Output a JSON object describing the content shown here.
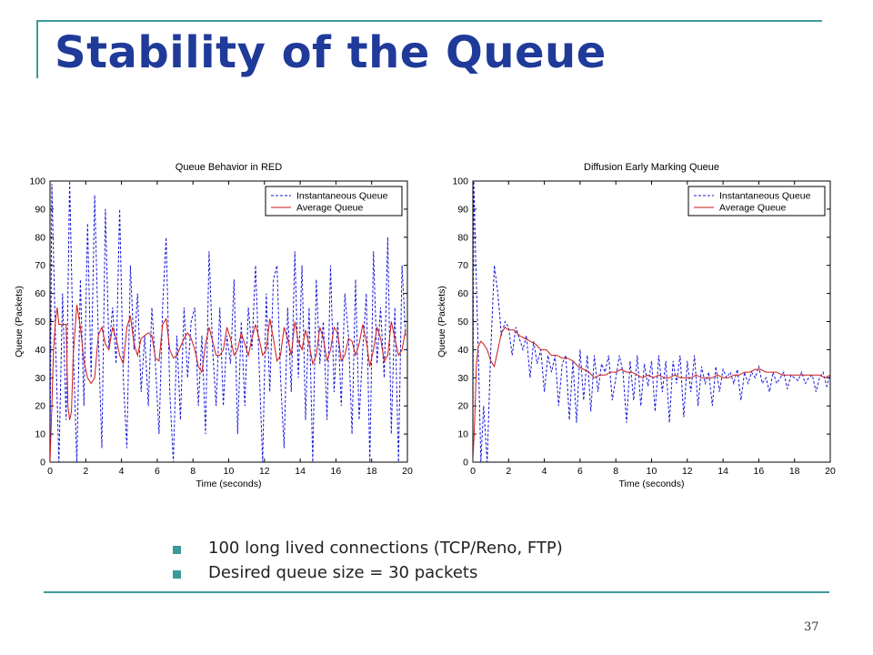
{
  "slide": {
    "title": "Stability of the Queue",
    "bullets": [
      "100 long lived connections (TCP/Reno, FTP)",
      "Desired queue size = 30 packets"
    ],
    "page_number": "37",
    "colors": {
      "title": "#1f3a99",
      "accent_lines": "#3f9a9a",
      "bullet": "#3a9a9a"
    }
  },
  "chart_data": [
    {
      "type": "line",
      "title": "Queue Behavior in RED",
      "xlabel": "Time (seconds)",
      "ylabel": "Queue (Packets)",
      "xlim": [
        0,
        20
      ],
      "ylim": [
        0,
        100
      ],
      "xticks": [
        "0",
        "2",
        "4",
        "6",
        "8",
        "10",
        "12",
        "14",
        "16",
        "18",
        "20"
      ],
      "yticks": [
        "0",
        "10",
        "20",
        "30",
        "40",
        "50",
        "60",
        "70",
        "80",
        "90",
        "100"
      ],
      "legend_position": "top-right",
      "series": [
        {
          "name": "Instantaneous Queue",
          "style": "dashed",
          "color": "#1a1ad6",
          "x": [
            0,
            0.1,
            0.3,
            0.5,
            0.7,
            0.9,
            1.1,
            1.3,
            1.5,
            1.7,
            1.9,
            2.1,
            2.3,
            2.5,
            2.7,
            2.9,
            3.1,
            3.3,
            3.5,
            3.7,
            3.9,
            4.1,
            4.3,
            4.5,
            4.7,
            4.9,
            5.1,
            5.3,
            5.5,
            5.7,
            5.9,
            6.1,
            6.3,
            6.5,
            6.7,
            6.9,
            7.1,
            7.3,
            7.5,
            7.7,
            7.9,
            8.1,
            8.3,
            8.5,
            8.7,
            8.9,
            9.1,
            9.3,
            9.5,
            9.7,
            9.9,
            10.1,
            10.3,
            10.5,
            10.7,
            10.9,
            11.1,
            11.3,
            11.5,
            11.7,
            11.9,
            12.1,
            12.3,
            12.5,
            12.7,
            12.9,
            13.1,
            13.3,
            13.5,
            13.7,
            13.9,
            14.1,
            14.3,
            14.5,
            14.7,
            14.9,
            15.1,
            15.3,
            15.5,
            15.7,
            15.9,
            16.1,
            16.3,
            16.5,
            16.7,
            16.9,
            17.1,
            17.3,
            17.5,
            17.7,
            17.9,
            18.1,
            18.3,
            18.5,
            18.7,
            18.9,
            19.1,
            19.3,
            19.5,
            19.7,
            19.9
          ],
          "y": [
            0,
            99,
            45,
            0,
            60,
            15,
            100,
            40,
            0,
            65,
            20,
            85,
            30,
            95,
            45,
            5,
            90,
            40,
            55,
            35,
            90,
            30,
            5,
            70,
            40,
            60,
            25,
            45,
            20,
            55,
            35,
            10,
            55,
            80,
            25,
            0,
            45,
            15,
            55,
            30,
            50,
            55,
            20,
            45,
            10,
            75,
            40,
            20,
            55,
            20,
            45,
            35,
            65,
            10,
            50,
            20,
            55,
            40,
            70,
            35,
            0,
            60,
            25,
            65,
            70,
            30,
            5,
            55,
            25,
            75,
            30,
            70,
            15,
            55,
            0,
            65,
            35,
            50,
            15,
            70,
            25,
            50,
            20,
            60,
            45,
            10,
            65,
            15,
            40,
            60,
            0,
            75,
            35,
            55,
            30,
            80,
            10,
            55,
            0,
            70,
            45
          ]
        },
        {
          "name": "Average Queue",
          "style": "solid",
          "color": "#cc1a1a",
          "x": [
            0,
            0.1,
            0.2,
            0.3,
            0.4,
            0.5,
            0.7,
            0.9,
            1.0,
            1.1,
            1.2,
            1.3,
            1.5,
            1.7,
            1.9,
            2.1,
            2.3,
            2.5,
            2.7,
            2.9,
            3.1,
            3.3,
            3.5,
            3.7,
            3.9,
            4.1,
            4.3,
            4.5,
            4.7,
            4.9,
            5.1,
            5.3,
            5.5,
            5.7,
            5.9,
            6.1,
            6.3,
            6.5,
            6.7,
            6.9,
            7.1,
            7.3,
            7.5,
            7.7,
            7.9,
            8.1,
            8.3,
            8.5,
            8.7,
            8.9,
            9.1,
            9.3,
            9.5,
            9.7,
            9.9,
            10.1,
            10.3,
            10.5,
            10.7,
            10.9,
            11.1,
            11.3,
            11.5,
            11.7,
            11.9,
            12.1,
            12.3,
            12.5,
            12.7,
            12.9,
            13.1,
            13.3,
            13.5,
            13.7,
            13.9,
            14.1,
            14.3,
            14.5,
            14.7,
            14.9,
            15.1,
            15.3,
            15.5,
            15.7,
            15.9,
            16.1,
            16.3,
            16.5,
            16.7,
            16.9,
            17.1,
            17.3,
            17.5,
            17.7,
            17.9,
            18.1,
            18.3,
            18.5,
            18.7,
            18.9,
            19.1,
            19.3,
            19.5,
            19.7,
            19.9
          ],
          "y": [
            0,
            20,
            40,
            50,
            55,
            49,
            49,
            49,
            20,
            15,
            18,
            38,
            56,
            48,
            36,
            30,
            28,
            30,
            45,
            48,
            42,
            40,
            48,
            44,
            38,
            35,
            48,
            52,
            42,
            38,
            44,
            45,
            46,
            45,
            37,
            36,
            49,
            51,
            40,
            37,
            38,
            41,
            44,
            46,
            44,
            40,
            34,
            32,
            42,
            48,
            43,
            38,
            38,
            40,
            48,
            44,
            38,
            40,
            46,
            42,
            38,
            44,
            49,
            44,
            38,
            40,
            51,
            44,
            36,
            38,
            48,
            44,
            38,
            50,
            43,
            40,
            47,
            42,
            35,
            38,
            48,
            44,
            36,
            40,
            48,
            46,
            36,
            38,
            44,
            43,
            38,
            42,
            49,
            43,
            34,
            40,
            48,
            44,
            36,
            38,
            50,
            44,
            38,
            40,
            47
          ]
        }
      ]
    },
    {
      "type": "line",
      "title": "Diffusion Early Marking Queue",
      "xlabel": "Time (seconds)",
      "ylabel": "Queue (Packets)",
      "xlim": [
        0,
        20
      ],
      "ylim": [
        0,
        100
      ],
      "xticks": [
        "0",
        "2",
        "4",
        "6",
        "8",
        "10",
        "12",
        "14",
        "16",
        "18",
        "20"
      ],
      "yticks": [
        "0",
        "10",
        "20",
        "30",
        "40",
        "50",
        "60",
        "70",
        "80",
        "90",
        "100"
      ],
      "legend_position": "top-right",
      "series": [
        {
          "name": "Instantaneous Queue",
          "style": "dashed",
          "color": "#1a1ad6",
          "x": [
            0,
            0.05,
            0.15,
            0.3,
            0.45,
            0.6,
            0.8,
            1.0,
            1.2,
            1.4,
            1.6,
            1.8,
            2.0,
            2.2,
            2.4,
            2.6,
            2.8,
            3.0,
            3.2,
            3.4,
            3.6,
            3.8,
            4.0,
            4.2,
            4.4,
            4.6,
            4.8,
            5.0,
            5.2,
            5.4,
            5.6,
            5.8,
            6.0,
            6.2,
            6.4,
            6.6,
            6.8,
            7.0,
            7.2,
            7.4,
            7.6,
            7.8,
            8.0,
            8.2,
            8.4,
            8.6,
            8.8,
            9.0,
            9.2,
            9.4,
            9.6,
            9.8,
            10.0,
            10.2,
            10.4,
            10.6,
            10.8,
            11.0,
            11.2,
            11.4,
            11.6,
            11.8,
            12.0,
            12.2,
            12.4,
            12.6,
            12.8,
            13.0,
            13.2,
            13.4,
            13.6,
            13.8,
            14.0,
            14.2,
            14.4,
            14.6,
            14.8,
            15.0,
            15.2,
            15.4,
            15.6,
            15.8,
            16.0,
            16.2,
            16.4,
            16.6,
            16.8,
            17.0,
            17.2,
            17.4,
            17.6,
            17.8,
            18.0,
            18.2,
            18.4,
            18.6,
            18.8,
            19.0,
            19.2,
            19.4,
            19.6,
            19.8,
            20.0
          ],
          "y": [
            0,
            100,
            75,
            40,
            0,
            20,
            0,
            40,
            70,
            60,
            45,
            50,
            48,
            38,
            48,
            44,
            40,
            45,
            30,
            43,
            35,
            40,
            25,
            38,
            32,
            38,
            20,
            35,
            38,
            15,
            36,
            14,
            40,
            22,
            38,
            18,
            38,
            25,
            35,
            32,
            38,
            22,
            30,
            38,
            32,
            14,
            36,
            22,
            38,
            20,
            35,
            27,
            36,
            18,
            38,
            25,
            36,
            14,
            36,
            28,
            38,
            16,
            36,
            25,
            38,
            20,
            34,
            28,
            32,
            20,
            34,
            25,
            33,
            30,
            32,
            28,
            33,
            22,
            32,
            28,
            32,
            30,
            34,
            28,
            30,
            25,
            32,
            28,
            30,
            32,
            26,
            31,
            30,
            29,
            32,
            28,
            30,
            31,
            25,
            30,
            32,
            27,
            31
          ]
        },
        {
          "name": "Average Queue",
          "style": "solid",
          "color": "#cc1a1a",
          "x": [
            0,
            0.1,
            0.2,
            0.3,
            0.45,
            0.6,
            0.8,
            1.0,
            1.2,
            1.4,
            1.6,
            1.8,
            2.0,
            2.3,
            2.6,
            2.9,
            3.2,
            3.5,
            3.8,
            4.1,
            4.4,
            4.7,
            5.0,
            5.3,
            5.6,
            5.9,
            6.2,
            6.5,
            6.8,
            7.1,
            7.4,
            7.7,
            8.0,
            8.3,
            8.6,
            8.9,
            9.2,
            9.5,
            9.8,
            10.1,
            10.4,
            10.7,
            11.0,
            11.3,
            11.6,
            11.9,
            12.2,
            12.5,
            12.8,
            13.1,
            13.4,
            13.7,
            14.0,
            14.3,
            14.6,
            14.9,
            15.2,
            15.5,
            15.8,
            16.1,
            16.4,
            16.7,
            17.0,
            17.3,
            17.6,
            17.9,
            18.2,
            18.5,
            18.8,
            19.1,
            19.4,
            19.7,
            20.0
          ],
          "y": [
            0,
            15,
            35,
            41,
            43,
            42,
            40,
            36,
            34,
            40,
            46,
            48,
            47,
            47,
            45,
            44,
            43,
            42,
            40,
            40,
            38,
            38,
            37,
            37,
            36,
            34,
            33,
            32,
            30,
            31,
            31,
            32,
            32,
            33,
            32,
            32,
            31,
            30,
            31,
            30,
            31,
            30,
            30,
            31,
            30,
            30,
            30,
            31,
            30,
            30,
            30,
            31,
            30,
            30,
            31,
            31,
            32,
            32,
            33,
            33,
            32,
            32,
            32,
            31,
            31,
            31,
            31,
            31,
            31,
            31,
            31,
            30,
            31
          ]
        }
      ]
    }
  ]
}
